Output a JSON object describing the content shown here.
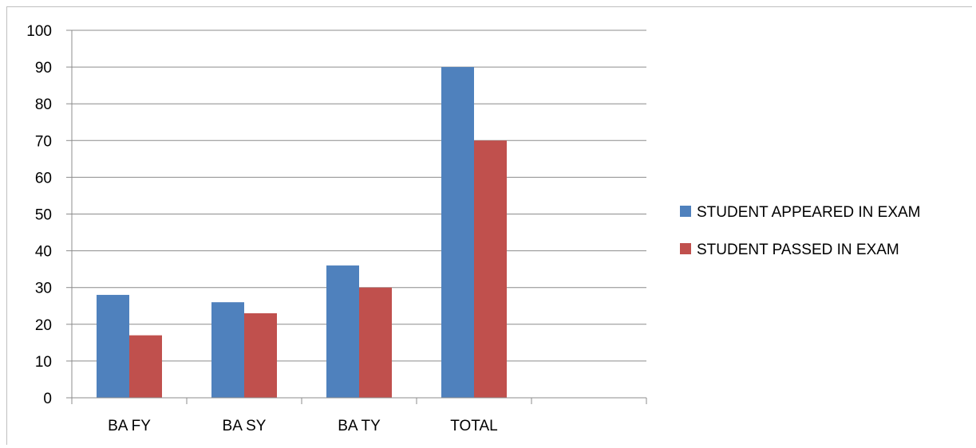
{
  "chart_data": {
    "type": "bar",
    "title": "",
    "xlabel": "",
    "ylabel": "",
    "categories": [
      "BA FY",
      "BA SY",
      "BA TY",
      "TOTAL",
      ""
    ],
    "series": [
      {
        "name": "STUDENT APPEARED IN EXAM",
        "color": "#4f81bd",
        "values": [
          28,
          26,
          36,
          90,
          null
        ]
      },
      {
        "name": "STUDENT PASSED IN EXAM",
        "color": "#c0504d",
        "values": [
          17,
          23,
          30,
          70,
          null
        ]
      }
    ],
    "ylim": [
      0,
      100
    ],
    "yticks": [
      0,
      10,
      20,
      30,
      40,
      50,
      60,
      70,
      80,
      90,
      100
    ],
    "grid": true,
    "legend_position": "right"
  }
}
